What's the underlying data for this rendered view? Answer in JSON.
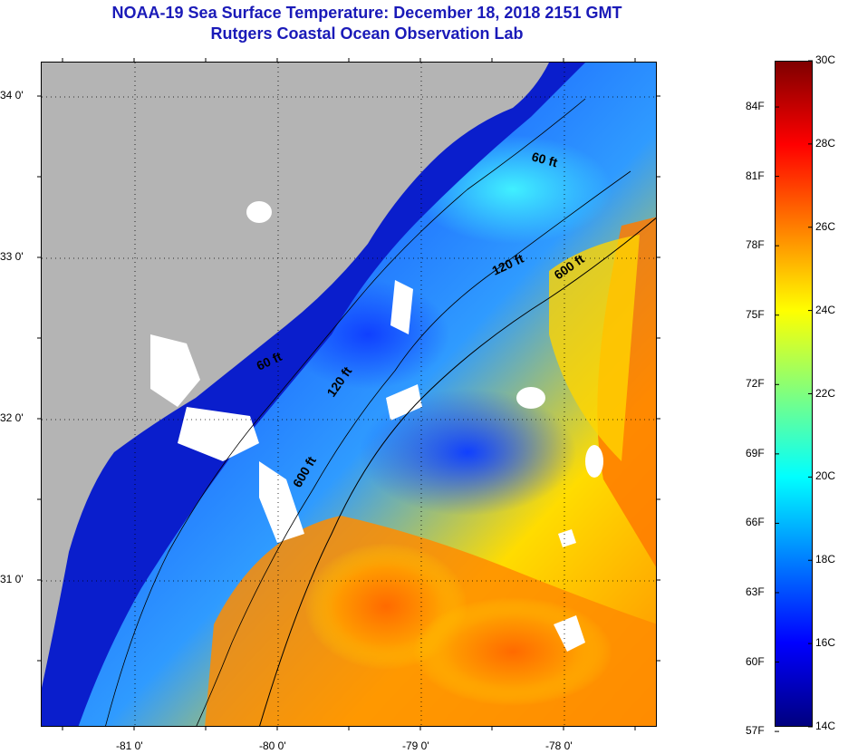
{
  "header": {
    "title": "NOAA-19 Sea Surface Temperature:  December 18, 2018 2151 GMT",
    "subtitle": "Rutgers Coastal Ocean Observation Lab"
  },
  "map": {
    "lat_labels": [
      {
        "label": "34 0'",
        "lat": 34.0
      },
      {
        "label": "33 0'",
        "lat": 33.0
      },
      {
        "label": "32 0'",
        "lat": 32.0
      },
      {
        "label": "31 0'",
        "lat": 31.0
      }
    ],
    "lon_labels": [
      {
        "label": "-81 0'",
        "lon": -81.0
      },
      {
        "label": "-80 0'",
        "lon": -80.0
      },
      {
        "label": "-79 0'",
        "lon": -79.0
      },
      {
        "label": "-78 0'",
        "lon": -78.0
      }
    ],
    "isobath_labels": [
      "60 ft",
      "120 ft",
      "600 ft",
      "60 ft",
      "120 ft",
      "600 ft"
    ],
    "colors": {
      "land": "#b4b4b4",
      "cloud": "#ffffff",
      "isobath": "#000000"
    }
  },
  "colorbar": {
    "celsius": [
      "30C",
      "28C",
      "26C",
      "24C",
      "22C",
      "20C",
      "18C",
      "16C",
      "14C"
    ],
    "fahrenheit": [
      "84F",
      "81F",
      "78F",
      "75F",
      "72F",
      "69F",
      "66F",
      "63F",
      "60F",
      "57F"
    ],
    "range_c": [
      14,
      30
    ],
    "stops": [
      "#00007f",
      "#0000ff",
      "#007fff",
      "#00ffff",
      "#7fff7f",
      "#ffff00",
      "#ff7f00",
      "#ff0000",
      "#7f0000"
    ]
  }
}
